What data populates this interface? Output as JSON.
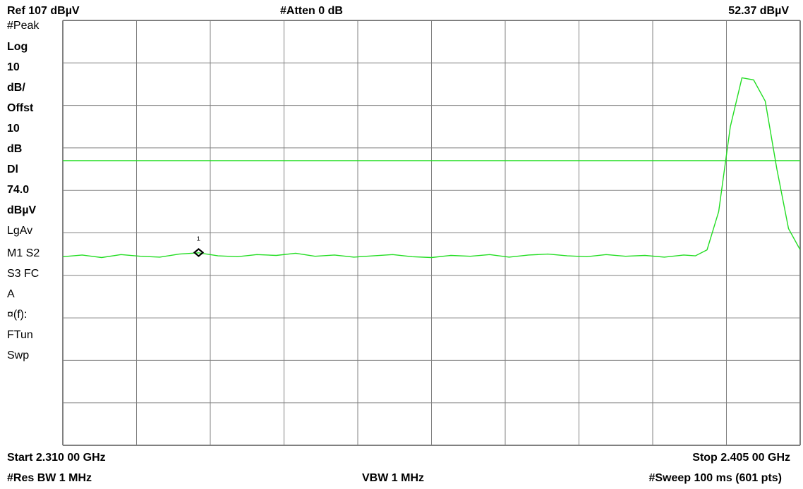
{
  "header": {
    "ref_level": "Ref 107 dBµV",
    "attenuation": "#Atten 0 dB",
    "marker_value": "52.37 dBµV"
  },
  "side_panel": [
    {
      "text": "#Peak",
      "bold": false
    },
    {
      "text": "Log",
      "bold": true
    },
    {
      "text": "10",
      "bold": true
    },
    {
      "text": "dB/",
      "bold": true
    },
    {
      "text": "Offst",
      "bold": true
    },
    {
      "text": "10",
      "bold": true
    },
    {
      "text": "dB",
      "bold": true
    },
    {
      "text": "Dl",
      "bold": true
    },
    {
      "text": "74.0",
      "bold": true
    },
    {
      "text": "dBµV",
      "bold": true
    },
    {
      "text": "LgAv",
      "bold": false
    },
    {
      "text": "M1  S2",
      "bold": false
    },
    {
      "text": "S3  FC",
      "bold": false
    },
    {
      "text": "A",
      "bold": false
    },
    {
      "text": "¤(f):",
      "bold": false
    },
    {
      "text": "FTun",
      "bold": false
    },
    {
      "text": "Swp",
      "bold": false
    }
  ],
  "footer": {
    "start": "Start 2.310 00 GHz",
    "stop": "Stop 2.405 00 GHz",
    "res_bw": "#Res BW 1 MHz",
    "vbw": "VBW 1 MHz",
    "sweep": "#Sweep 100 ms (601 pts)"
  },
  "colors": {
    "trace": "#22dd22",
    "display_line": "#22dd22",
    "grid": "#808080",
    "marker": "#000000"
  },
  "chart_data": {
    "type": "line",
    "title": "",
    "x_unit": "GHz",
    "xlim": [
      2.31,
      2.405
    ],
    "y_unit": "dBµV",
    "ylim": [
      7,
      107
    ],
    "y_scale_db_per_div": 10,
    "grid": true,
    "display_line": 74.0,
    "marker": {
      "label": "1",
      "x": 2.3275,
      "y": 52.37
    },
    "series": [
      {
        "x": [
          2.31,
          2.3125,
          2.315,
          2.3175,
          2.32,
          2.3225,
          2.325,
          2.3275,
          2.33,
          2.3325,
          2.335,
          2.3375,
          2.34,
          2.3425,
          2.345,
          2.3475,
          2.35,
          2.3525,
          2.355,
          2.3575,
          2.36,
          2.3625,
          2.365,
          2.3675,
          2.37,
          2.3725,
          2.375,
          2.3775,
          2.38,
          2.3825,
          2.385,
          2.3875,
          2.39,
          2.3915,
          2.393,
          2.3945,
          2.396,
          2.3975,
          2.399,
          2.4005,
          2.402,
          2.4035,
          2.405
        ],
        "values": [
          51.4,
          51.8,
          51.2,
          51.9,
          51.5,
          51.3,
          52.0,
          52.3,
          51.6,
          51.4,
          51.9,
          51.7,
          52.2,
          51.5,
          51.8,
          51.3,
          51.6,
          51.9,
          51.4,
          51.2,
          51.7,
          51.5,
          51.9,
          51.3,
          51.8,
          52.0,
          51.6,
          51.4,
          51.9,
          51.5,
          51.7,
          51.3,
          51.8,
          51.6,
          53.0,
          62.0,
          82.0,
          93.5,
          93.0,
          88.0,
          72.0,
          58.0,
          53.0
        ]
      }
    ]
  }
}
